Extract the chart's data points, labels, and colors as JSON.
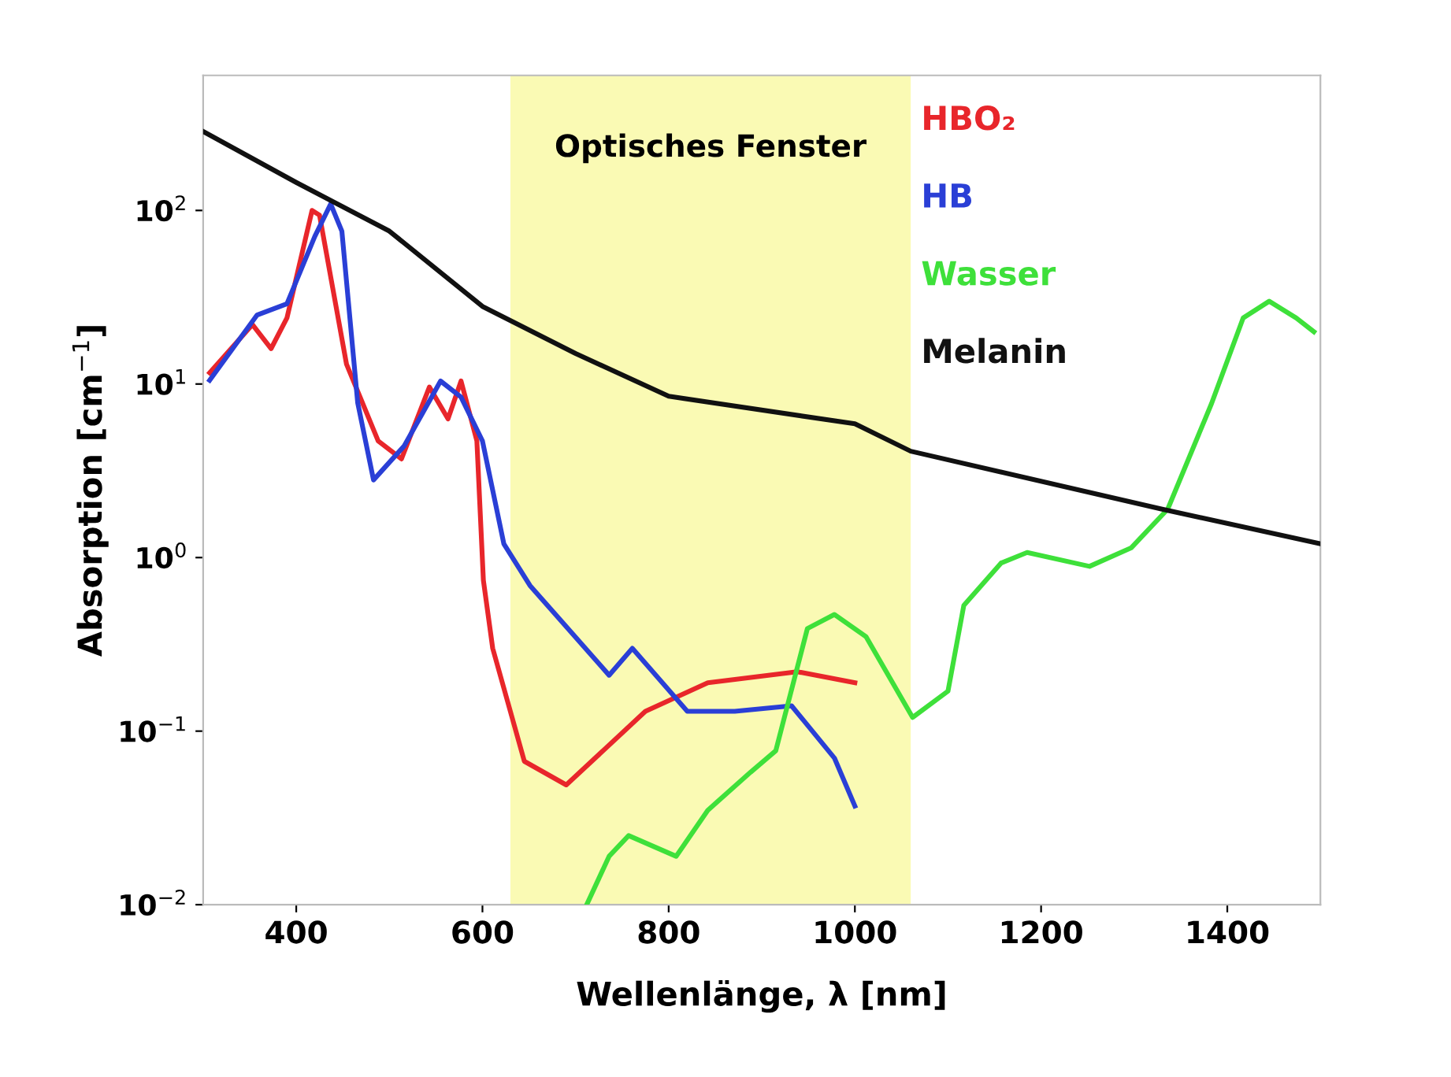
{
  "chart_data": {
    "type": "line",
    "xlabel": "Wellenlänge, λ [nm]",
    "ylabel": "Absorption [cm$^{−1}$]",
    "log": "y",
    "xlim": [
      300,
      1500
    ],
    "xticks": [
      400,
      600,
      800,
      1000,
      1200,
      1400
    ],
    "ylim": [
      0.01,
      600
    ],
    "yticks": [
      {
        "value": 0.01,
        "label": "10$^{−2}$"
      },
      {
        "value": 0.1,
        "label": "10$^{−1}$"
      },
      {
        "value": 1,
        "label": "10$^{0}$"
      },
      {
        "value": 10,
        "label": "10$^{1}$"
      },
      {
        "value": 100,
        "label": "10$^{2}$"
      }
    ],
    "grid": false,
    "legend": "top right",
    "bands": [
      {
        "axis": "x",
        "from": 630,
        "to": 1060,
        "label": "Optisches Fenster",
        "color": "#fafab4"
      }
    ],
    "series": [
      {
        "name": "HBO₂",
        "color": "#e8262b",
        "x": [
          307,
          353,
          373,
          390,
          417,
          425,
          454,
          488,
          513,
          543,
          563,
          577,
          594,
          601,
          611,
          645,
          690,
          775,
          842,
          938,
          1000
        ],
        "values": [
          11.6,
          22,
          16,
          24,
          100,
          94,
          13,
          4.7,
          3.7,
          9.6,
          6.3,
          10.4,
          4.7,
          0.74,
          0.3,
          0.067,
          0.049,
          0.13,
          0.19,
          0.22,
          0.19
        ]
      },
      {
        "name": "HB",
        "color": "#2a3fd6",
        "x": [
          307,
          358,
          390,
          420,
          437,
          449,
          466,
          483,
          516,
          555,
          577,
          600,
          623,
          651,
          736,
          761,
          820,
          871,
          932,
          978,
          1000
        ],
        "values": [
          10.5,
          25,
          29,
          71,
          109,
          76,
          7.8,
          2.8,
          4.4,
          10.4,
          8.4,
          4.7,
          1.2,
          0.69,
          0.21,
          0.3,
          0.13,
          0.13,
          0.14,
          0.07,
          0.037
        ]
      },
      {
        "name": "Wasser",
        "color": "#3ee03a",
        "x": [
          712,
          736,
          757,
          808,
          842,
          888,
          915,
          935,
          949,
          978,
          1012,
          1062,
          1100,
          1117,
          1157,
          1185,
          1252,
          1297,
          1336,
          1383,
          1417,
          1445,
          1474,
          1493
        ],
        "values": [
          0.01,
          0.019,
          0.025,
          0.019,
          0.035,
          0.058,
          0.077,
          0.2,
          0.39,
          0.47,
          0.35,
          0.12,
          0.17,
          0.53,
          0.93,
          1.07,
          0.89,
          1.14,
          1.9,
          7.7,
          24,
          30,
          24,
          20
        ]
      },
      {
        "name": "Melanin",
        "color": "#111111",
        "x": [
          300,
          400,
          500,
          600,
          700,
          800,
          1000,
          1060,
          1330,
          1500
        ],
        "values": [
          285,
          145,
          76,
          28,
          15,
          8.5,
          5.9,
          4.1,
          1.9,
          1.2
        ]
      }
    ]
  }
}
